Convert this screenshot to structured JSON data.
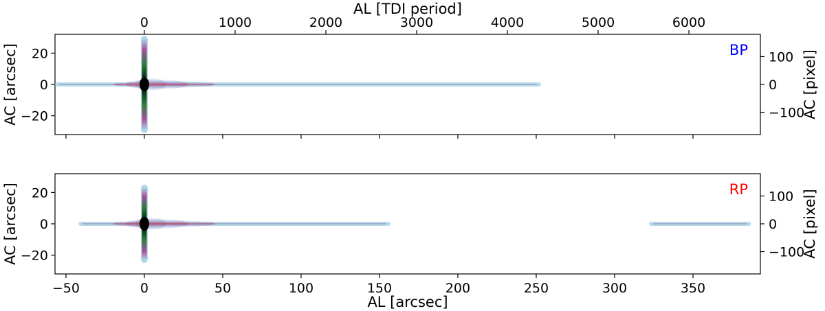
{
  "chart_data": [
    {
      "type": "scatter",
      "panel_label": "BP",
      "panel_label_color": "#0000ff",
      "xlabel_top": "AL [TDI period]",
      "top_x_ticks": [
        "0",
        "1000",
        "2000",
        "3000",
        "4000",
        "5000",
        "6000"
      ],
      "top_x_tick_values": [
        0,
        1000,
        2000,
        3000,
        4000,
        5000,
        6000
      ],
      "ylabel": "AC [arcsec]",
      "ylabel_right": "AC [pixel]",
      "xlim": [
        -57,
        393
      ],
      "ylim": [
        -32,
        32
      ],
      "y_ticks": [
        "20",
        "0",
        "−20"
      ],
      "y_tick_values": [
        20,
        0,
        -20
      ],
      "right_y_ticks": [
        "100",
        "0",
        "−100"
      ],
      "right_y_tick_values": [
        100,
        0,
        -100
      ],
      "core": {
        "x": 0,
        "ac_extent": [
          -31,
          31
        ]
      },
      "traces": [
        {
          "x_start": -57,
          "x_end": 253
        }
      ],
      "colors": [
        "#add8e6",
        "#b04aa0",
        "#2e7d32",
        "#000000"
      ]
    },
    {
      "type": "scatter",
      "panel_label": "RP",
      "panel_label_color": "#ff0000",
      "xlabel": "AL [arcsec]",
      "ylabel": "AC [arcsec]",
      "ylabel_right": "AC [pixel]",
      "xlim": [
        -57,
        393
      ],
      "ylim": [
        -32,
        32
      ],
      "x_ticks": [
        "−50",
        "0",
        "50",
        "100",
        "150",
        "200",
        "250",
        "300",
        "350"
      ],
      "x_tick_values": [
        -50,
        0,
        50,
        100,
        150,
        200,
        250,
        300,
        350
      ],
      "y_ticks": [
        "20",
        "0",
        "−20"
      ],
      "y_tick_values": [
        20,
        0,
        -20
      ],
      "right_y_ticks": [
        "100",
        "0",
        "−100"
      ],
      "right_y_tick_values": [
        100,
        0,
        -100
      ],
      "core": {
        "x": 0,
        "ac_extent": [
          -25,
          25
        ]
      },
      "traces": [
        {
          "x_start": -42,
          "x_end": 157
        },
        {
          "x_start": 322,
          "x_end": 387
        }
      ],
      "colors": [
        "#add8e6",
        "#b04aa0",
        "#2e7d32",
        "#000000"
      ]
    }
  ]
}
